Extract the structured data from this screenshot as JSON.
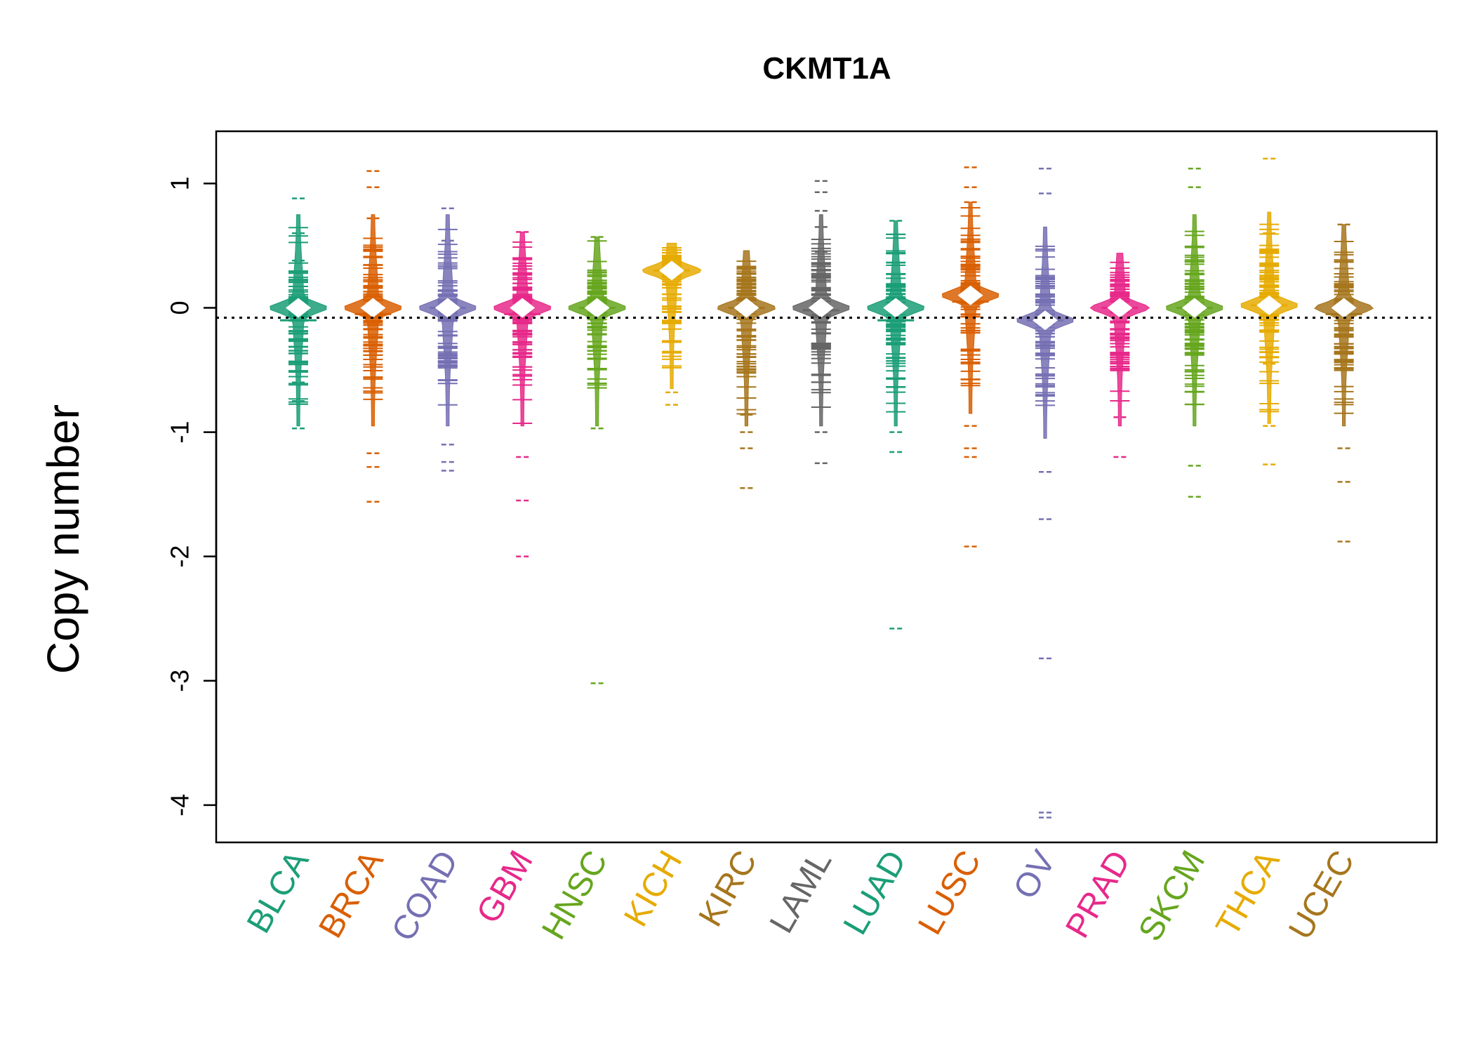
{
  "chart_data": {
    "type": "beanplot",
    "title": "CKMT1A",
    "ylabel": "Copy number",
    "xlabel": "",
    "ylim": [
      -4.3,
      1.42
    ],
    "yticks": [
      -4,
      -3,
      -2,
      -1,
      0,
      1
    ],
    "reference_line": -0.08,
    "grid": false,
    "categories": [
      "BLCA",
      "BRCA",
      "COAD",
      "GBM",
      "HNSC",
      "KICH",
      "KIRC",
      "LAML",
      "LUAD",
      "LUSC",
      "OV",
      "PRAD",
      "SKCM",
      "THCA",
      "UCEC"
    ],
    "colors": [
      "#1B9E77",
      "#D95F02",
      "#7570B3",
      "#E7298A",
      "#66A61E",
      "#E6AB02",
      "#A6761D",
      "#666666",
      "#1B9E77",
      "#D95F02",
      "#7570B3",
      "#E7298A",
      "#66A61E",
      "#E6AB02",
      "#A6761D"
    ],
    "series": [
      {
        "category": "BLCA",
        "min": -0.98,
        "max": 0.88,
        "mode": 0.0,
        "median": -0.1,
        "outliers": [
          0.88,
          0.6,
          0.38,
          -0.6,
          -0.75,
          -0.97
        ]
      },
      {
        "category": "BRCA",
        "min": -1.56,
        "max": 1.1,
        "mode": 0.0,
        "median": -0.05,
        "outliers": [
          1.1,
          0.97,
          0.72,
          -1.17,
          -1.28,
          -1.56
        ]
      },
      {
        "category": "COAD",
        "min": -1.31,
        "max": 0.8,
        "mode": 0.0,
        "median": 0.0,
        "outliers": [
          0.8,
          0.54,
          -1.1,
          -1.24,
          -1.31
        ]
      },
      {
        "category": "GBM",
        "min": -2.0,
        "max": 0.61,
        "mode": 0.0,
        "median": -0.05,
        "outliers": [
          0.61,
          -1.2,
          -1.55,
          -2.0
        ]
      },
      {
        "category": "HNSC",
        "min": -3.02,
        "max": 0.57,
        "mode": 0.0,
        "median": 0.0,
        "outliers": [
          0.57,
          -0.97,
          -3.02
        ]
      },
      {
        "category": "KICH",
        "min": -0.78,
        "max": 0.52,
        "mode": 0.3,
        "median": 0.3,
        "outliers": [
          -0.68,
          -0.78
        ]
      },
      {
        "category": "KIRC",
        "min": -1.45,
        "max": 0.46,
        "mode": 0.0,
        "median": 0.0,
        "outliers": [
          -0.86,
          -1.0,
          -1.13,
          -1.45
        ]
      },
      {
        "category": "LAML",
        "min": -1.25,
        "max": 1.02,
        "mode": 0.0,
        "median": -0.02,
        "outliers": [
          1.02,
          0.93,
          0.78,
          0.65,
          0.45,
          -1.0,
          -1.25
        ]
      },
      {
        "category": "LUAD",
        "min": -2.58,
        "max": 0.7,
        "mode": 0.0,
        "median": -0.1,
        "outliers": [
          0.7,
          -1.0,
          -1.16,
          -2.58
        ]
      },
      {
        "category": "LUSC",
        "min": -1.92,
        "max": 1.13,
        "mode": 0.1,
        "median": 0.05,
        "outliers": [
          1.13,
          0.97,
          0.85,
          -0.95,
          -1.13,
          -1.2,
          -1.92
        ]
      },
      {
        "category": "OV",
        "min": -4.1,
        "max": 1.12,
        "mode": -0.1,
        "median": -0.1,
        "outliers": [
          1.12,
          0.92,
          -1.32,
          -1.7,
          -2.82,
          -4.06,
          -4.1
        ]
      },
      {
        "category": "PRAD",
        "min": -1.2,
        "max": 0.44,
        "mode": 0.0,
        "median": 0.0,
        "outliers": [
          -0.88,
          -1.2
        ]
      },
      {
        "category": "SKCM",
        "min": -1.52,
        "max": 1.12,
        "mode": 0.0,
        "median": 0.0,
        "outliers": [
          1.12,
          0.97,
          -1.27,
          -1.52
        ]
      },
      {
        "category": "THCA",
        "min": -1.26,
        "max": 1.2,
        "mode": 0.02,
        "median": 0.02,
        "outliers": [
          1.2,
          0.6,
          0.47,
          -0.45,
          -0.95,
          -1.26
        ]
      },
      {
        "category": "UCEC",
        "min": -1.88,
        "max": 0.67,
        "mode": 0.0,
        "median": -0.05,
        "outliers": [
          0.67,
          -1.13,
          -1.4,
          -1.88
        ]
      }
    ]
  }
}
